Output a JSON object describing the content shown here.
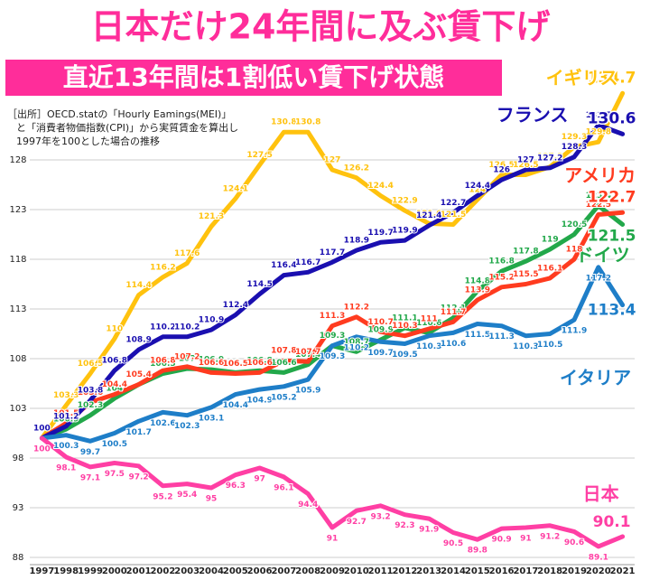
{
  "chart_data": {
    "type": "line",
    "title": "日本だけ24年間に及ぶ賃下げ",
    "subtitle": "直近13年間は1割低い賃下げ状態",
    "annotations": [
      "［出所］OECD.statの「Hourly Eamings(MEI)」",
      "と「消費者物価指数(CPI)」から実質賃金を算出し",
      "1997年を100とした場合の推移"
    ],
    "categories": [
      "1997",
      "1998",
      "1999",
      "2000",
      "2001",
      "2002",
      "2003",
      "2004",
      "2005",
      "2006",
      "2007",
      "2008",
      "2009",
      "2010",
      "2011",
      "2012",
      "2013",
      "2014",
      "2015",
      "2016",
      "2017",
      "2018",
      "2019",
      "2020",
      "2021"
    ],
    "series": [
      {
        "name": "イギリス",
        "color": "#ffc20e",
        "values": [
          100,
          103.3,
          106.5,
          110.0,
          114.4,
          116.2,
          117.6,
          121.3,
          124.1,
          127.5,
          130.8,
          130.8,
          127.0,
          126.2,
          124.4,
          122.9,
          121.6,
          121.5,
          124.0,
          126.5,
          126.5,
          127.3,
          129.3,
          129.8,
          134.7
        ]
      },
      {
        "name": "ドイツ",
        "color": "#22a84a",
        "values": [
          100,
          100.9,
          102.3,
          104.0,
          105.4,
          106.5,
          107.0,
          106.9,
          106.6,
          106.8,
          106.6,
          107.4,
          109.3,
          108.7,
          109.9,
          111.1,
          110.6,
          112.1,
          114.8,
          116.8,
          117.8,
          119.0,
          120.5,
          123.4,
          121.5
        ]
      },
      {
        "name": "アメリカ",
        "color": "#ff3b1f",
        "values": [
          100,
          101.5,
          103.6,
          104.4,
          105.4,
          106.8,
          107.2,
          106.6,
          106.5,
          106.6,
          107.8,
          107.7,
          111.3,
          112.2,
          110.7,
          110.3,
          111.0,
          111.7,
          113.9,
          115.2,
          115.5,
          116.1,
          118.0,
          122.5,
          122.7
        ]
      },
      {
        "name": "フランス",
        "color": "#1a0fb0",
        "values": [
          100,
          101.2,
          103.8,
          106.8,
          108.9,
          110.2,
          110.2,
          110.9,
          112.4,
          114.5,
          116.4,
          116.7,
          117.7,
          118.9,
          119.7,
          119.9,
          121.4,
          122.7,
          124.4,
          126.0,
          127.0,
          127.2,
          128.3,
          131.5,
          130.6
        ]
      },
      {
        "name": "イタリア",
        "color": "#1e7ec8",
        "values": [
          100,
          100.3,
          99.7,
          100.5,
          101.7,
          102.6,
          102.3,
          103.1,
          104.4,
          104.9,
          105.2,
          105.9,
          109.3,
          110.2,
          109.7,
          109.5,
          110.3,
          110.6,
          111.5,
          111.3,
          110.3,
          110.5,
          111.9,
          117.2,
          113.4
        ]
      },
      {
        "name": "日本",
        "color": "#ff3fa4",
        "values": [
          100,
          98.1,
          97.1,
          97.5,
          97.2,
          95.2,
          95.4,
          95.0,
          96.3,
          97.0,
          96.1,
          94.4,
          91.0,
          92.7,
          93.2,
          92.3,
          91.9,
          90.5,
          89.8,
          90.9,
          91.0,
          91.2,
          90.6,
          89.1,
          90.1
        ]
      }
    ],
    "ylim": [
      88,
      136
    ],
    "yticks": [
      88,
      93,
      98,
      103,
      108,
      113,
      118,
      123,
      128
    ],
    "grid": true
  }
}
